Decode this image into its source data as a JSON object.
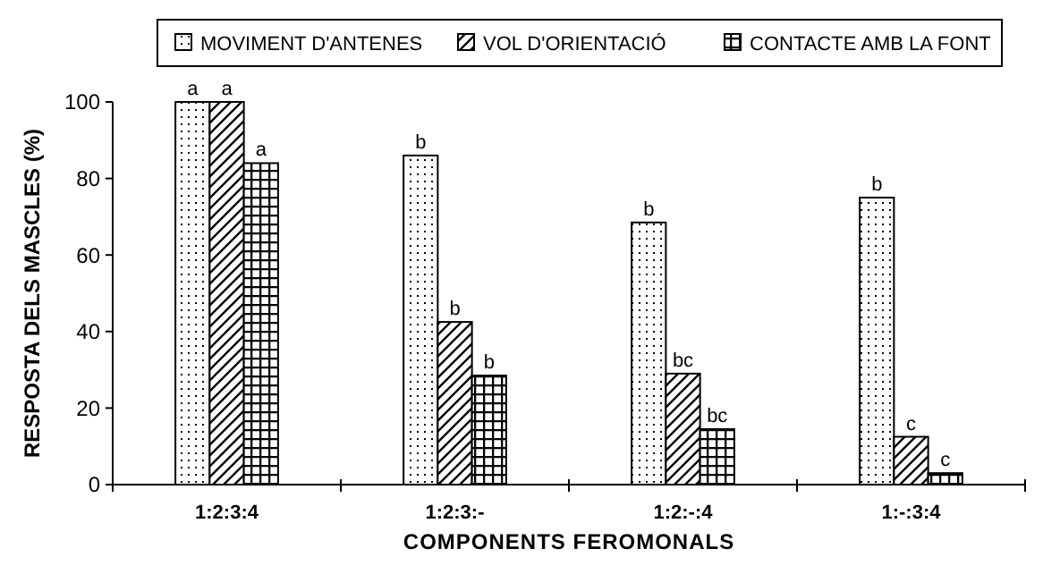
{
  "chart_data": {
    "type": "bar",
    "xlabel": "COMPONENTS FEROMONALS",
    "ylabel": "RESPOSTA DELS MASCLES (%)",
    "categories": [
      "1:2:3:4",
      "1:2:3:-",
      "1:2:-:4",
      "1:-:3:4"
    ],
    "ylim": [
      0,
      100
    ],
    "yticks": [
      0,
      20,
      40,
      60,
      80,
      100
    ],
    "grid": false,
    "legend": "top",
    "series": [
      {
        "name": "MOVIMENT D'ANTENES",
        "color": "#000000",
        "values": [
          100,
          86,
          68.5,
          75
        ],
        "value_labels": [
          "a",
          "b",
          "b",
          "b"
        ]
      },
      {
        "name": "VOL D'ORIENTACIÓ",
        "color": "#000000",
        "values": [
          100,
          42.5,
          29,
          12.5
        ],
        "value_labels": [
          "a",
          "b",
          "bc",
          "c"
        ]
      },
      {
        "name": "CONTACTE AMB LA FONT",
        "color": "#000000",
        "values": [
          84,
          28.5,
          14.5,
          3
        ],
        "value_labels": [
          "a",
          "b",
          "bc",
          "c"
        ]
      }
    ]
  }
}
